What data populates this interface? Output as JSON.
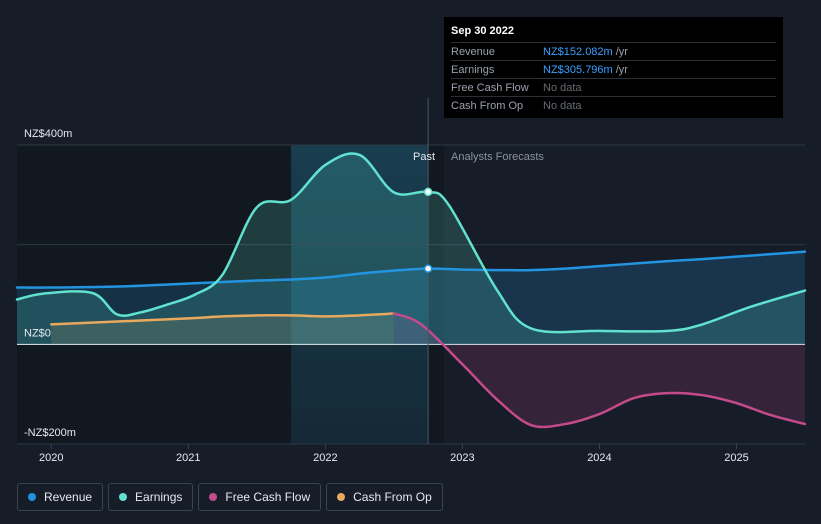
{
  "tooltip": {
    "date": "Sep 30 2022",
    "rows": [
      {
        "label": "Revenue",
        "value": "NZ$152.082m",
        "unit": "/yr"
      },
      {
        "label": "Earnings",
        "value": "NZ$305.796m",
        "unit": "/yr"
      },
      {
        "label": "Free Cash Flow",
        "value": "No data",
        "unit": ""
      },
      {
        "label": "Cash From Op",
        "value": "No data",
        "unit": ""
      }
    ]
  },
  "labels": {
    "past": "Past",
    "forecast": "Analysts Forecasts"
  },
  "legend": [
    {
      "label": "Revenue",
      "color": "#2394df"
    },
    {
      "label": "Earnings",
      "color": "#61e1cf"
    },
    {
      "label": "Free Cash Flow",
      "color": "#c44a8c"
    },
    {
      "label": "Cash From Op",
      "color": "#e8a85d"
    }
  ],
  "chart_data": {
    "type": "line",
    "y_tick_labels": [
      "NZ$400m",
      "NZ$0",
      "-NZ$200m"
    ],
    "y_ticks": [
      400,
      0,
      -200
    ],
    "ylim": [
      -200,
      400
    ],
    "x_tick_labels": [
      "2020",
      "2021",
      "2022",
      "2023",
      "2024",
      "2025"
    ],
    "x_ticks": [
      2020,
      2021,
      2022,
      2023,
      2024,
      2025
    ],
    "xlim": [
      2019.75,
      2025.5
    ],
    "past_end": 2022.75,
    "highlight_start": 2021.75,
    "series": [
      {
        "name": "Revenue",
        "color": "#2394df",
        "points": [
          [
            2019.75,
            114
          ],
          [
            2020.0,
            114
          ],
          [
            2020.5,
            116
          ],
          [
            2021.0,
            122
          ],
          [
            2021.25,
            125
          ],
          [
            2021.5,
            128
          ],
          [
            2021.75,
            130
          ],
          [
            2022.0,
            134
          ],
          [
            2022.25,
            142
          ],
          [
            2022.5,
            148
          ],
          [
            2022.75,
            152
          ],
          [
            2023.0,
            150
          ],
          [
            2023.25,
            149
          ],
          [
            2023.5,
            149
          ],
          [
            2023.75,
            152
          ],
          [
            2024.0,
            157
          ],
          [
            2024.25,
            162
          ],
          [
            2024.5,
            167
          ],
          [
            2024.75,
            171
          ],
          [
            2025.0,
            176
          ],
          [
            2025.25,
            181
          ],
          [
            2025.5,
            186
          ]
        ]
      },
      {
        "name": "Earnings",
        "color": "#61e1cf",
        "points": [
          [
            2019.75,
            90
          ],
          [
            2019.95,
            102
          ],
          [
            2020.3,
            103
          ],
          [
            2020.48,
            60
          ],
          [
            2020.65,
            64
          ],
          [
            2020.85,
            80
          ],
          [
            2021.05,
            100
          ],
          [
            2021.25,
            140
          ],
          [
            2021.5,
            275
          ],
          [
            2021.75,
            290
          ],
          [
            2022.0,
            360
          ],
          [
            2022.25,
            380
          ],
          [
            2022.5,
            305
          ],
          [
            2022.75,
            306
          ],
          [
            2022.9,
            280
          ],
          [
            2023.25,
            110
          ],
          [
            2023.5,
            32
          ],
          [
            2024.0,
            27
          ],
          [
            2024.5,
            27
          ],
          [
            2024.75,
            40
          ],
          [
            2025.1,
            75
          ],
          [
            2025.5,
            108
          ]
        ]
      },
      {
        "name": "Free Cash Flow",
        "color": "#c44a8c",
        "points": [
          [
            2022.5,
            62
          ],
          [
            2022.7,
            40
          ],
          [
            2023.0,
            -40
          ],
          [
            2023.25,
            -110
          ],
          [
            2023.5,
            -162
          ],
          [
            2023.75,
            -160
          ],
          [
            2024.0,
            -140
          ],
          [
            2024.25,
            -108
          ],
          [
            2024.5,
            -98
          ],
          [
            2024.75,
            -102
          ],
          [
            2025.0,
            -118
          ],
          [
            2025.25,
            -142
          ],
          [
            2025.5,
            -160
          ]
        ]
      },
      {
        "name": "Cash From Op",
        "color": "#e8a85d",
        "points": [
          [
            2020.0,
            40
          ],
          [
            2020.5,
            46
          ],
          [
            2021.0,
            52
          ],
          [
            2021.25,
            56
          ],
          [
            2021.5,
            58
          ],
          [
            2021.75,
            58
          ],
          [
            2022.0,
            56
          ],
          [
            2022.25,
            58
          ],
          [
            2022.5,
            62
          ]
        ]
      }
    ],
    "markers": [
      {
        "series": "Earnings",
        "x": 2022.75,
        "y": 306
      },
      {
        "series": "Revenue",
        "x": 2022.75,
        "y": 152
      }
    ]
  }
}
